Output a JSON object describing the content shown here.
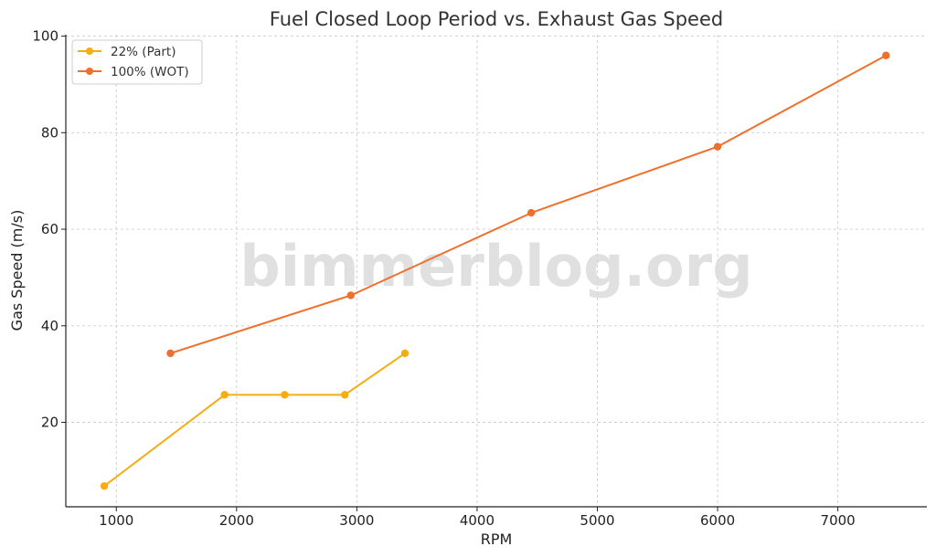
{
  "chart_data": {
    "type": "line",
    "title": "Fuel Closed Loop Period vs. Exhaust Gas Speed",
    "xlabel": "RPM",
    "ylabel": "Gas Speed (m/s)",
    "xlim": [
      580,
      7740
    ],
    "ylim": [
      2.5,
      100.3
    ],
    "xticks": [
      1000,
      2000,
      3000,
      4000,
      5000,
      6000,
      7000
    ],
    "yticks": [
      20,
      40,
      60,
      80,
      100
    ],
    "grid": true,
    "legend_position": "top-left",
    "watermark": "bimmerblog.org",
    "series": [
      {
        "name": "22% (Part)",
        "color": "#f5ad14",
        "x": [
          900,
          1900,
          2400,
          2900,
          3400
        ],
        "y": [
          6.8,
          25.7,
          25.7,
          25.7,
          34.3
        ]
      },
      {
        "name": "100% (WOT)",
        "color": "#ef6f2c",
        "x": [
          1450,
          2950,
          4450,
          6000,
          7400
        ],
        "y": [
          34.3,
          46.3,
          63.4,
          77.1,
          96.0
        ]
      }
    ]
  }
}
